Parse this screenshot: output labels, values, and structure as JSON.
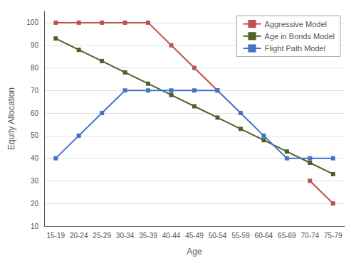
{
  "chart_data": {
    "type": "line",
    "xlabel": "Age",
    "ylabel": "Equity Allocation",
    "categories": [
      "15-19",
      "20-24",
      "25-29",
      "30-34",
      "35-39",
      "40-44",
      "45-49",
      "50-54",
      "55-59",
      "60-64",
      "65-69",
      "70-74",
      "75-79"
    ],
    "series": [
      {
        "name": "Aggressive Model",
        "color": "#c0504d",
        "values": [
          100,
          100,
          100,
          100,
          100,
          90,
          80,
          70,
          null,
          null,
          null,
          30,
          20
        ]
      },
      {
        "name": "Age in Bonds Model",
        "color": "#4f6228",
        "values": [
          93,
          88,
          83,
          78,
          73,
          68,
          63,
          58,
          53,
          48,
          43,
          38,
          33
        ]
      },
      {
        "name": "Flight Path Model",
        "color": "#4472c4",
        "values": [
          40,
          50,
          60,
          70,
          70,
          70,
          70,
          70,
          60,
          50,
          40,
          40,
          40
        ]
      }
    ],
    "ylim": [
      10,
      105
    ],
    "yticks": [
      10,
      20,
      30,
      40,
      50,
      60,
      70,
      80,
      90,
      100
    ],
    "grid": true,
    "legend": "upper right",
    "marker": "square"
  }
}
